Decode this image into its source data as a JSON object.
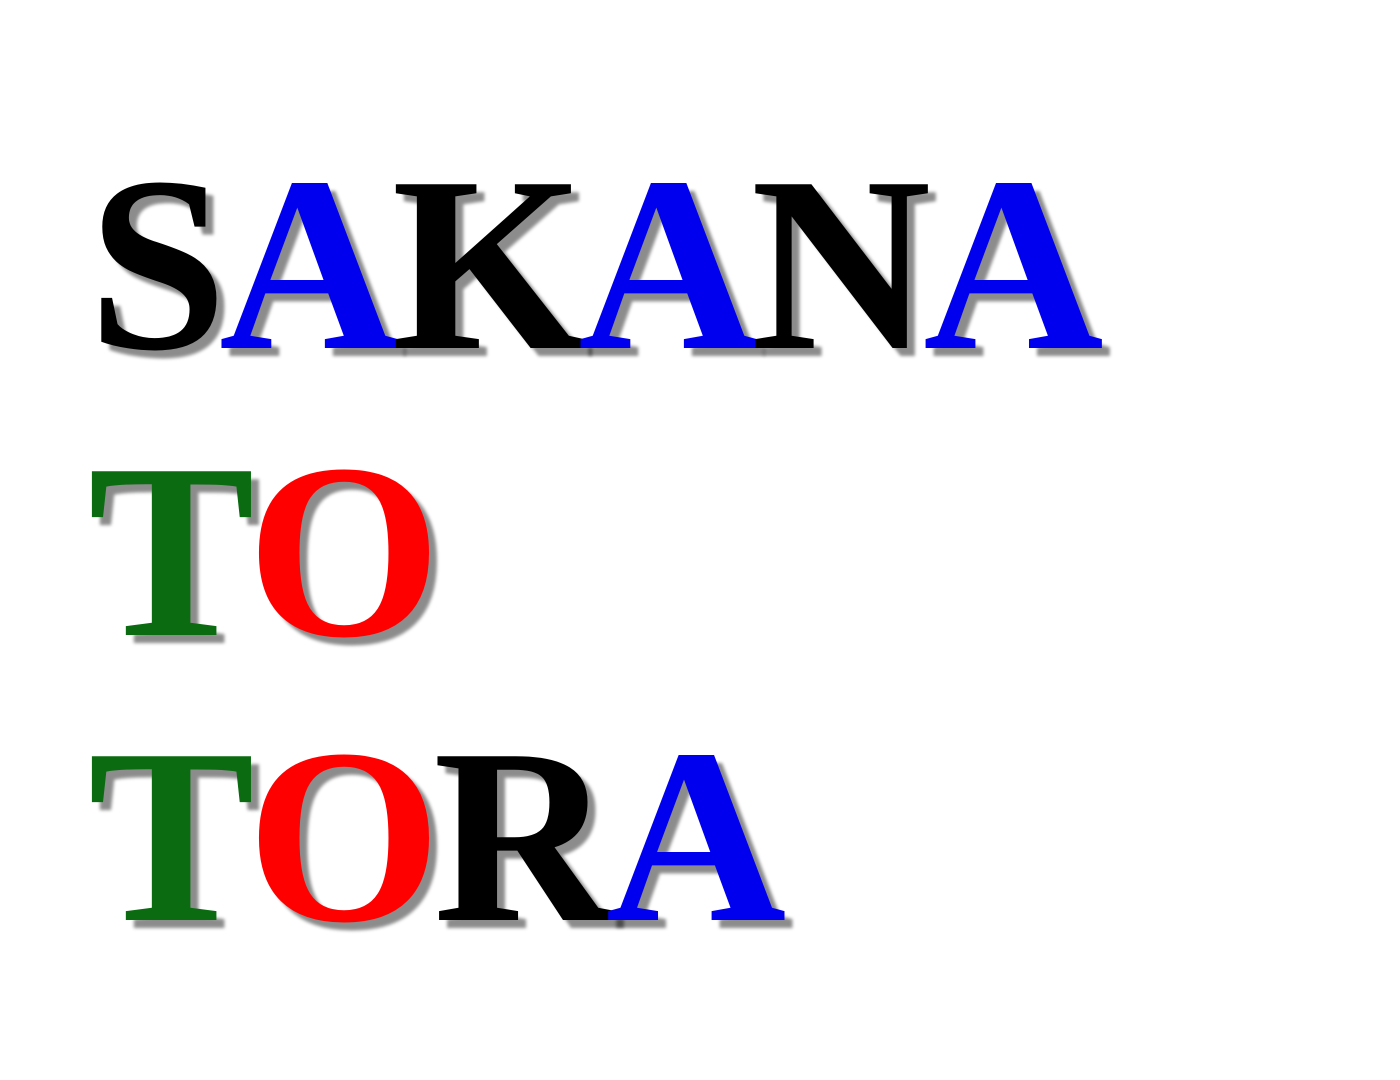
{
  "words": [
    {
      "letters": [
        {
          "char": "S",
          "color": "#000000"
        },
        {
          "char": "A",
          "color": "#0000ee"
        },
        {
          "char": "K",
          "color": "#000000"
        },
        {
          "char": "A",
          "color": "#0000ee"
        },
        {
          "char": "N",
          "color": "#000000"
        },
        {
          "char": "A",
          "color": "#0000ee"
        }
      ]
    },
    {
      "letters": [
        {
          "char": "T",
          "color": "#0a6b10"
        },
        {
          "char": "O",
          "color": "#ff0000"
        }
      ]
    },
    {
      "letters": [
        {
          "char": "T",
          "color": "#0a6b10"
        },
        {
          "char": "O",
          "color": "#ff0000"
        },
        {
          "char": "R",
          "color": "#000000"
        },
        {
          "char": "A",
          "color": "#0000ee"
        }
      ]
    }
  ]
}
